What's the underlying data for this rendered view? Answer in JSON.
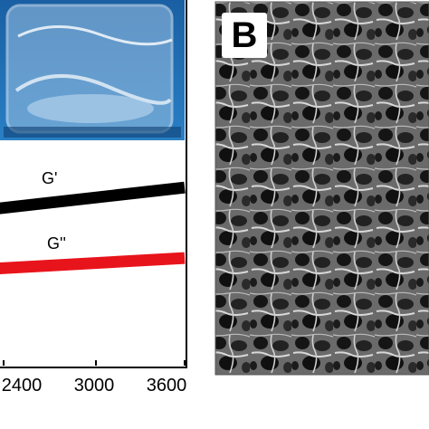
{
  "panel_b": {
    "label": "B"
  },
  "chart_data": {
    "type": "line",
    "title": "",
    "xlabel": "",
    "ylabel": "",
    "x_tick_labels": [
      "2400",
      "3000",
      "3600"
    ],
    "x_ticks": [
      2400,
      3000,
      3600
    ],
    "xlim": [
      2400,
      3600
    ],
    "grid": false,
    "series": [
      {
        "name": "G'",
        "color": "#000000",
        "x": [
          2400,
          3600
        ],
        "y": [
          0.7,
          0.8
        ]
      },
      {
        "name": "G''",
        "color": "#e8141b",
        "x": [
          2400,
          3600
        ],
        "y": [
          0.42,
          0.47
        ]
      }
    ],
    "inset": "photo of transparent gel in glass vial"
  },
  "colors": {
    "inset_bg": "#1a6bb0",
    "sem_bg": "#6e6e6e"
  }
}
